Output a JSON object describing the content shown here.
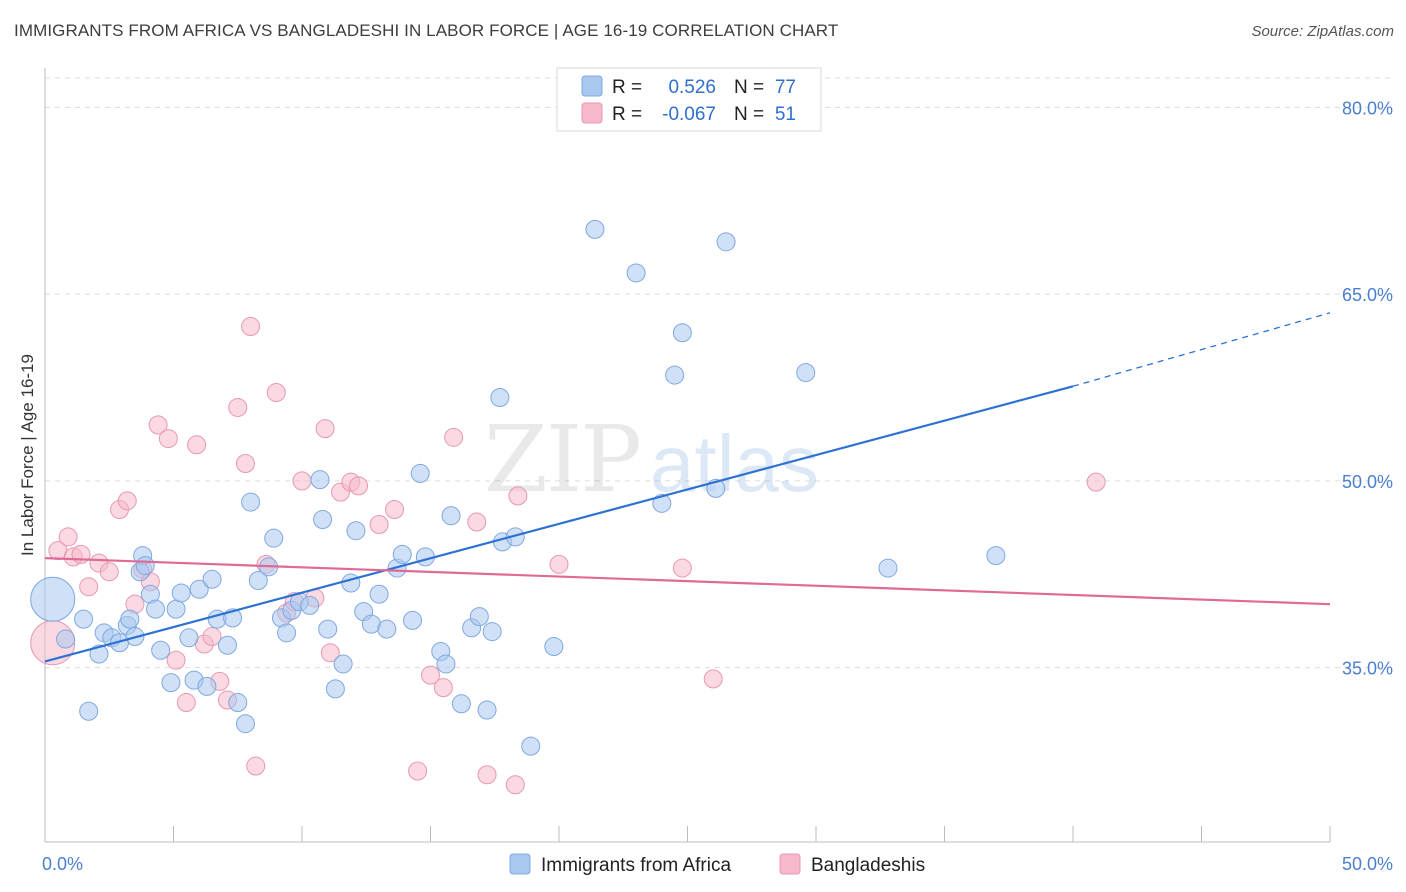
{
  "header": {
    "title": "IMMIGRANTS FROM AFRICA VS BANGLADESHI IN LABOR FORCE | AGE 16-19 CORRELATION CHART",
    "source": "Source: ZipAtlas.com"
  },
  "watermark": {
    "zip": "ZIP",
    "atlas": "atlas"
  },
  "legend": {
    "r_label": "R =",
    "n_label": "N =",
    "rows": [
      {
        "r": "0.526",
        "n": "77",
        "color": "#a9c8f0"
      },
      {
        "r": "-0.067",
        "n": "51",
        "color": "#f5b9cb"
      }
    ]
  },
  "chart_data": {
    "type": "scatter",
    "title": "IMMIGRANTS FROM AFRICA VS BANGLADESHI IN LABOR FORCE | AGE 16-19 CORRELATION CHART",
    "ylabel": "In Labor Force | Age 16-19",
    "xlim": [
      0,
      50
    ],
    "ylim": [
      21,
      83
    ],
    "x_tick_labels": [
      "0.0%",
      "50.0%"
    ],
    "y_ticks": [
      {
        "value": 80,
        "label": "80.0%"
      },
      {
        "value": 65,
        "label": "65.0%"
      },
      {
        "value": 50,
        "label": "50.0%"
      },
      {
        "value": 35,
        "label": "35.0%"
      }
    ],
    "grid": true,
    "legend_position": "top-center",
    "series": [
      {
        "name": "Immigrants from Africa",
        "color": "#a9c8f0",
        "stroke": "#7fa8e0",
        "trend": {
          "x": [
            0,
            40
          ],
          "y": [
            35.5,
            57.6
          ],
          "dashed_to": [
            50,
            63.5
          ],
          "color": "#2d72d2"
        },
        "points": [
          [
            0.3,
            40.5
          ],
          [
            0.8,
            37.3
          ],
          [
            1.5,
            38.9
          ],
          [
            2.1,
            36.1
          ],
          [
            2.3,
            37.8
          ],
          [
            2.6,
            37.4
          ],
          [
            1.7,
            31.5
          ],
          [
            2.9,
            37
          ],
          [
            3.2,
            38.4
          ],
          [
            3.3,
            38.9
          ],
          [
            3.5,
            37.5
          ],
          [
            3.7,
            42.7
          ],
          [
            3.8,
            44
          ],
          [
            3.9,
            43.2
          ],
          [
            4.1,
            40.9
          ],
          [
            4.3,
            39.7
          ],
          [
            4.5,
            36.4
          ],
          [
            4.9,
            33.8
          ],
          [
            5.1,
            39.7
          ],
          [
            5.3,
            41
          ],
          [
            5.6,
            37.4
          ],
          [
            5.8,
            34
          ],
          [
            6.0,
            41.3
          ],
          [
            6.3,
            33.5
          ],
          [
            6.5,
            42.1
          ],
          [
            6.7,
            38.9
          ],
          [
            7.1,
            36.8
          ],
          [
            7.3,
            39
          ],
          [
            7.5,
            32.2
          ],
          [
            7.8,
            30.5
          ],
          [
            8.0,
            48.3
          ],
          [
            8.3,
            42
          ],
          [
            8.7,
            43.1
          ],
          [
            8.9,
            45.4
          ],
          [
            9.2,
            39
          ],
          [
            9.4,
            37.8
          ],
          [
            9.6,
            39.6
          ],
          [
            9.9,
            40.3
          ],
          [
            10.3,
            40
          ],
          [
            10.7,
            50.1
          ],
          [
            10.8,
            46.9
          ],
          [
            11.0,
            38.1
          ],
          [
            11.3,
            33.3
          ],
          [
            11.6,
            35.3
          ],
          [
            11.9,
            41.8
          ],
          [
            12.1,
            46
          ],
          [
            12.4,
            39.5
          ],
          [
            12.7,
            38.5
          ],
          [
            13.0,
            40.9
          ],
          [
            13.3,
            38.1
          ],
          [
            13.7,
            43
          ],
          [
            13.9,
            44.1
          ],
          [
            14.3,
            38.8
          ],
          [
            14.8,
            43.9
          ],
          [
            14.6,
            50.6
          ],
          [
            15.4,
            36.3
          ],
          [
            15.6,
            35.3
          ],
          [
            15.8,
            47.2
          ],
          [
            16.2,
            32.1
          ],
          [
            16.6,
            38.2
          ],
          [
            16.9,
            39.1
          ],
          [
            17.2,
            31.6
          ],
          [
            17.4,
            37.9
          ],
          [
            17.7,
            56.7
          ],
          [
            17.8,
            45.1
          ],
          [
            18.3,
            45.5
          ],
          [
            18.9,
            28.7
          ],
          [
            19.8,
            36.7
          ],
          [
            21.4,
            70.2
          ],
          [
            23.0,
            66.7
          ],
          [
            24.0,
            48.2
          ],
          [
            24.5,
            58.5
          ],
          [
            24.8,
            61.9
          ],
          [
            26.1,
            49.4
          ],
          [
            26.5,
            69.2
          ],
          [
            29.6,
            58.7
          ],
          [
            32.8,
            43
          ],
          [
            37.0,
            44
          ]
        ]
      },
      {
        "name": "Bangladeshis",
        "color": "#f5b9cb",
        "stroke": "#e898b0",
        "trend": {
          "x": [
            0,
            50
          ],
          "y": [
            43.8,
            40.1
          ],
          "color": "#e06a95"
        },
        "points": [
          [
            0.3,
            37
          ],
          [
            0.5,
            44.4
          ],
          [
            0.9,
            45.5
          ],
          [
            1.1,
            43.9
          ],
          [
            1.4,
            44.1
          ],
          [
            1.7,
            41.5
          ],
          [
            2.1,
            43.4
          ],
          [
            2.5,
            42.7
          ],
          [
            2.9,
            47.7
          ],
          [
            3.2,
            48.4
          ],
          [
            3.5,
            40.1
          ],
          [
            3.8,
            42.9
          ],
          [
            4.1,
            41.9
          ],
          [
            4.4,
            54.5
          ],
          [
            4.8,
            53.4
          ],
          [
            5.1,
            35.6
          ],
          [
            5.5,
            32.2
          ],
          [
            5.9,
            52.9
          ],
          [
            6.2,
            36.9
          ],
          [
            6.5,
            37.5
          ],
          [
            6.8,
            33.9
          ],
          [
            7.1,
            32.4
          ],
          [
            7.5,
            55.9
          ],
          [
            7.8,
            51.4
          ],
          [
            8.0,
            62.4
          ],
          [
            8.2,
            27.1
          ],
          [
            8.6,
            43.3
          ],
          [
            9.0,
            57.1
          ],
          [
            9.4,
            39.4
          ],
          [
            9.7,
            40.3
          ],
          [
            10.0,
            50
          ],
          [
            10.5,
            40.6
          ],
          [
            10.9,
            54.2
          ],
          [
            11.1,
            36.2
          ],
          [
            11.5,
            49.1
          ],
          [
            11.9,
            49.9
          ],
          [
            12.2,
            49.6
          ],
          [
            13.0,
            46.5
          ],
          [
            13.6,
            47.7
          ],
          [
            14.5,
            26.7
          ],
          [
            15.0,
            34.4
          ],
          [
            15.5,
            33.4
          ],
          [
            15.9,
            53.5
          ],
          [
            16.8,
            46.7
          ],
          [
            17.2,
            26.4
          ],
          [
            18.3,
            25.6
          ],
          [
            18.4,
            48.8
          ],
          [
            20.0,
            43.3
          ],
          [
            24.8,
            43
          ],
          [
            26.0,
            34.1
          ],
          [
            40.9,
            49.9
          ]
        ]
      }
    ]
  },
  "bottom_legend": [
    {
      "label": "Immigrants from Africa",
      "color": "#a9c8f0"
    },
    {
      "label": "Bangladeshis",
      "color": "#f5b9cb"
    }
  ]
}
